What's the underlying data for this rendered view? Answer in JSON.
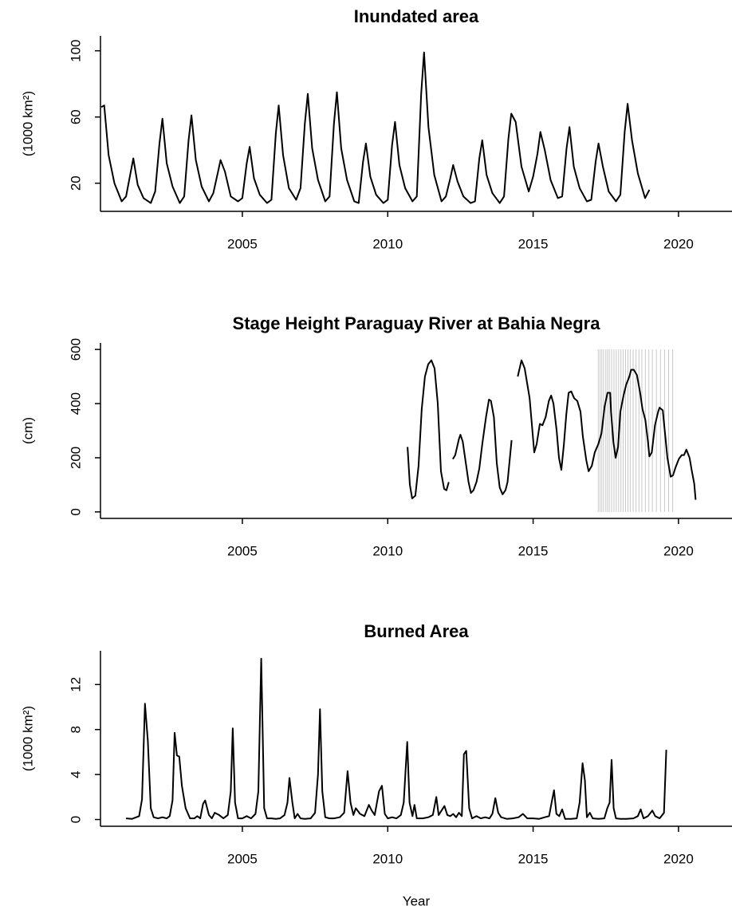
{
  "chart_data": [
    {
      "type": "line",
      "title": "Inundated area",
      "ylabel": "(1000 km²)",
      "color": "#000000",
      "xlim": [
        2000.12,
        2021.84
      ],
      "xticks": [
        2005,
        2010,
        2015,
        2020
      ],
      "ylim": [
        3,
        109
      ],
      "yticks": [
        20,
        60,
        100
      ],
      "x": [
        2000.15,
        2000.25,
        2000.4,
        2000.6,
        2000.85,
        2001.0,
        2001.15,
        2001.25,
        2001.4,
        2001.6,
        2001.85,
        2002.0,
        2002.15,
        2002.25,
        2002.4,
        2002.6,
        2002.85,
        2003.0,
        2003.15,
        2003.25,
        2003.4,
        2003.6,
        2003.85,
        2004.0,
        2004.15,
        2004.25,
        2004.4,
        2004.6,
        2004.85,
        2005.0,
        2005.15,
        2005.25,
        2005.4,
        2005.6,
        2005.85,
        2006.0,
        2006.15,
        2006.25,
        2006.4,
        2006.6,
        2006.85,
        2007.0,
        2007.15,
        2007.25,
        2007.4,
        2007.6,
        2007.85,
        2008.0,
        2008.15,
        2008.25,
        2008.4,
        2008.6,
        2008.85,
        2009.0,
        2009.15,
        2009.25,
        2009.4,
        2009.6,
        2009.85,
        2010.0,
        2010.15,
        2010.25,
        2010.4,
        2010.6,
        2010.85,
        2011.0,
        2011.15,
        2011.25,
        2011.4,
        2011.6,
        2011.85,
        2012.0,
        2012.15,
        2012.25,
        2012.4,
        2012.6,
        2012.85,
        2013.0,
        2013.15,
        2013.25,
        2013.4,
        2013.6,
        2013.85,
        2014.0,
        2014.15,
        2014.25,
        2014.4,
        2014.6,
        2014.85,
        2015.0,
        2015.15,
        2015.25,
        2015.4,
        2015.6,
        2015.85,
        2016.0,
        2016.15,
        2016.25,
        2016.4,
        2016.6,
        2016.85,
        2017.0,
        2017.15,
        2017.25,
        2017.4,
        2017.6,
        2017.85,
        2018.0,
        2018.15,
        2018.25,
        2018.4,
        2018.6,
        2018.85,
        2019.0
      ],
      "values": [
        66,
        67,
        37,
        20,
        9,
        12,
        26,
        35,
        19,
        11,
        8,
        15,
        44,
        59,
        32,
        18,
        8,
        12,
        46,
        61,
        34,
        18,
        9,
        14,
        26,
        34,
        27,
        12,
        9,
        11,
        32,
        42,
        23,
        13,
        8,
        10,
        50,
        67,
        37,
        17,
        10,
        17,
        56,
        74,
        41,
        22,
        9,
        12,
        56,
        75,
        41,
        22,
        9,
        8,
        33,
        44,
        24,
        13,
        8,
        10,
        43,
        57,
        31,
        17,
        9,
        12,
        74,
        99,
        54,
        25,
        9,
        12,
        23,
        31,
        21,
        12,
        8,
        9,
        35,
        46,
        25,
        14,
        8,
        12,
        47,
        62,
        57,
        30,
        15,
        24,
        38,
        51,
        40,
        22,
        11,
        12,
        41,
        54,
        30,
        17,
        9,
        10,
        33,
        44,
        30,
        15,
        9,
        13,
        51,
        68,
        46,
        26,
        11,
        16
      ]
    },
    {
      "type": "line",
      "title": "Stage Height Paraguay River at Bahia Negra",
      "ylabel": "(cm)",
      "color": "#000000",
      "xlim": [
        2000.12,
        2021.84
      ],
      "xticks": [
        2005,
        2010,
        2015,
        2020
      ],
      "ylim": [
        -24,
        624
      ],
      "yticks": [
        0,
        200,
        400,
        600
      ],
      "vlines": [
        2017.24,
        2017.3,
        2017.36,
        2017.42,
        2017.5,
        2017.56,
        2017.62,
        2017.7,
        2017.78,
        2017.86,
        2017.94,
        2018.02,
        2018.1,
        2018.18,
        2018.26,
        2018.34,
        2018.44,
        2018.54,
        2018.64,
        2018.74,
        2018.86,
        2018.98,
        2019.1,
        2019.24,
        2019.38,
        2019.52,
        2019.66,
        2019.8
      ],
      "vline_color": "#c8c8c8",
      "vline_range": [
        0,
        600
      ],
      "x": [
        2010.68,
        2010.76,
        2010.84,
        2010.95,
        2011.06,
        2011.17,
        2011.28,
        2011.39,
        2011.5,
        2011.61,
        2011.72,
        2011.83,
        2011.94,
        2012.02,
        2012.1,
        2012.17,
        2012.24,
        2012.32,
        2012.45,
        2012.5,
        2012.58,
        2012.7,
        2012.78,
        2012.86,
        2012.95,
        2013.05,
        2013.15,
        2013.25,
        2013.38,
        2013.48,
        2013.55,
        2013.65,
        2013.75,
        2013.85,
        2013.95,
        2014.05,
        2014.12,
        2014.26,
        2014.36,
        2014.47,
        2014.6,
        2014.71,
        2014.88,
        2015.04,
        2015.12,
        2015.23,
        2015.32,
        2015.43,
        2015.54,
        2015.62,
        2015.7,
        2015.81,
        2015.89,
        2015.97,
        2016.06,
        2016.14,
        2016.22,
        2016.31,
        2016.41,
        2016.52,
        2016.63,
        2016.71,
        2016.83,
        2016.91,
        2017.02,
        2017.12,
        2017.24,
        2017.35,
        2017.46,
        2017.56,
        2017.65,
        2017.68,
        2017.76,
        2017.84,
        2017.92,
        2018.0,
        2018.11,
        2018.2,
        2018.31,
        2018.37,
        2018.46,
        2018.57,
        2018.68,
        2018.76,
        2018.86,
        2018.95,
        2019.0,
        2019.08,
        2019.19,
        2019.3,
        2019.35,
        2019.46,
        2019.51,
        2019.62,
        2019.73,
        2019.81,
        2019.9,
        2020.01,
        2020.11,
        2020.19,
        2020.27,
        2020.38,
        2020.46,
        2020.54,
        2020.59
      ],
      "values": [
        240,
        100,
        50,
        60,
        170,
        380,
        500,
        545,
        560,
        530,
        400,
        150,
        85,
        80,
        110,
        null,
        195,
        210,
        270,
        285,
        260,
        170,
        110,
        70,
        80,
        110,
        160,
        250,
        350,
        415,
        410,
        350,
        180,
        90,
        65,
        80,
        110,
        265,
        null,
        500,
        560,
        530,
        420,
        220,
        250,
        325,
        320,
        350,
        410,
        430,
        400,
        300,
        200,
        155,
        250,
        360,
        440,
        445,
        420,
        410,
        370,
        280,
        190,
        150,
        170,
        220,
        250,
        290,
        390,
        440,
        440,
        370,
        260,
        200,
        240,
        370,
        430,
        470,
        500,
        525,
        525,
        505,
        440,
        380,
        340,
        260,
        205,
        220,
        320,
        370,
        385,
        375,
        320,
        200,
        130,
        135,
        165,
        195,
        210,
        210,
        230,
        200,
        150,
        105,
        45
      ]
    },
    {
      "type": "line",
      "title": "Burned Area",
      "ylabel": "(1000 km²)",
      "xlabel": "Year",
      "color": "#000000",
      "xlim": [
        2000.12,
        2021.84
      ],
      "xticks": [
        2005,
        2010,
        2015,
        2020
      ],
      "ylim": [
        -0.6,
        15
      ],
      "yticks": [
        0,
        4,
        8,
        12
      ],
      "x": [
        2001.0,
        2001.2,
        2001.35,
        2001.45,
        2001.55,
        2001.65,
        2001.75,
        2001.85,
        2001.95,
        2002.1,
        2002.25,
        2002.4,
        2002.5,
        2002.6,
        2002.67,
        2002.75,
        2002.83,
        2002.92,
        2003.05,
        2003.2,
        2003.35,
        2003.45,
        2003.55,
        2003.65,
        2003.72,
        2003.85,
        2003.95,
        2004.05,
        2004.2,
        2004.35,
        2004.5,
        2004.6,
        2004.67,
        2004.75,
        2004.85,
        2005.0,
        2005.15,
        2005.3,
        2005.45,
        2005.55,
        2005.65,
        2005.75,
        2005.85,
        2006.0,
        2006.15,
        2006.3,
        2006.45,
        2006.55,
        2006.62,
        2006.72,
        2006.8,
        2006.9,
        2007.0,
        2007.15,
        2007.35,
        2007.5,
        2007.6,
        2007.67,
        2007.75,
        2007.85,
        2008.0,
        2008.15,
        2008.35,
        2008.5,
        2008.62,
        2008.72,
        2008.82,
        2008.9,
        2009.05,
        2009.2,
        2009.35,
        2009.45,
        2009.55,
        2009.7,
        2009.8,
        2009.9,
        2010.0,
        2010.15,
        2010.3,
        2010.45,
        2010.55,
        2010.67,
        2010.75,
        2010.85,
        2010.92,
        2011.0,
        2011.2,
        2011.4,
        2011.55,
        2011.67,
        2011.75,
        2011.85,
        2011.95,
        2012.05,
        2012.15,
        2012.25,
        2012.35,
        2012.45,
        2012.55,
        2012.62,
        2012.7,
        2012.8,
        2012.9,
        2013.05,
        2013.2,
        2013.35,
        2013.5,
        2013.6,
        2013.7,
        2013.8,
        2013.9,
        2014.1,
        2014.3,
        2014.5,
        2014.65,
        2014.8,
        2015.0,
        2015.2,
        2015.4,
        2015.55,
        2015.65,
        2015.72,
        2015.8,
        2015.9,
        2016.0,
        2016.1,
        2016.3,
        2016.5,
        2016.6,
        2016.7,
        2016.78,
        2016.85,
        2016.95,
        2017.05,
        2017.25,
        2017.45,
        2017.55,
        2017.63,
        2017.7,
        2017.77,
        2017.85,
        2018.0,
        2018.2,
        2018.45,
        2018.6,
        2018.7,
        2018.8,
        2018.95,
        2019.1,
        2019.2,
        2019.35,
        2019.5,
        2019.58
      ],
      "values": [
        0.1,
        0.05,
        0.2,
        0.3,
        1.8,
        10.3,
        7,
        1,
        0.2,
        0.1,
        0.2,
        0.1,
        0.3,
        1.7,
        7.7,
        5.7,
        5.6,
        3,
        1,
        0.1,
        0.1,
        0.3,
        0.1,
        1.4,
        1.7,
        0.4,
        0.1,
        0.6,
        0.4,
        0.1,
        0.4,
        2.5,
        8.1,
        1.5,
        0.1,
        0.1,
        0.3,
        0.1,
        0.5,
        2.5,
        14.3,
        1,
        0.1,
        0.1,
        0.05,
        0.1,
        0.4,
        1.5,
        3.7,
        1.5,
        0.1,
        0.5,
        0.1,
        0.05,
        0.1,
        0.6,
        4,
        9.8,
        2.5,
        0.2,
        0.1,
        0.1,
        0.2,
        0.6,
        4.3,
        1.5,
        0.4,
        1,
        0.5,
        0.3,
        1.3,
        0.8,
        0.4,
        2.5,
        3,
        0.5,
        0.1,
        0.2,
        0.1,
        0.4,
        1.5,
        6.9,
        1.5,
        0.3,
        1.3,
        0.1,
        0.1,
        0.2,
        0.4,
        2,
        0.4,
        0.8,
        1.2,
        0.4,
        0.3,
        0.5,
        0.2,
        0.6,
        0.3,
        5.8,
        6.1,
        1,
        0.1,
        0.3,
        0.1,
        0.2,
        0.1,
        0.5,
        1.9,
        0.6,
        0.2,
        0.05,
        0.1,
        0.2,
        0.5,
        0.1,
        0.1,
        0.05,
        0.2,
        0.3,
        1.7,
        2.6,
        0.5,
        0.3,
        0.9,
        0.05,
        0.05,
        0.1,
        1.5,
        5,
        3.5,
        0.2,
        0.6,
        0.1,
        0.05,
        0.1,
        1,
        1.5,
        5.3,
        1,
        0.1,
        0.05,
        0.05,
        0.1,
        0.3,
        0.9,
        0.1,
        0.3,
        0.8,
        0.3,
        0.1,
        0.6,
        6.2
      ]
    }
  ]
}
